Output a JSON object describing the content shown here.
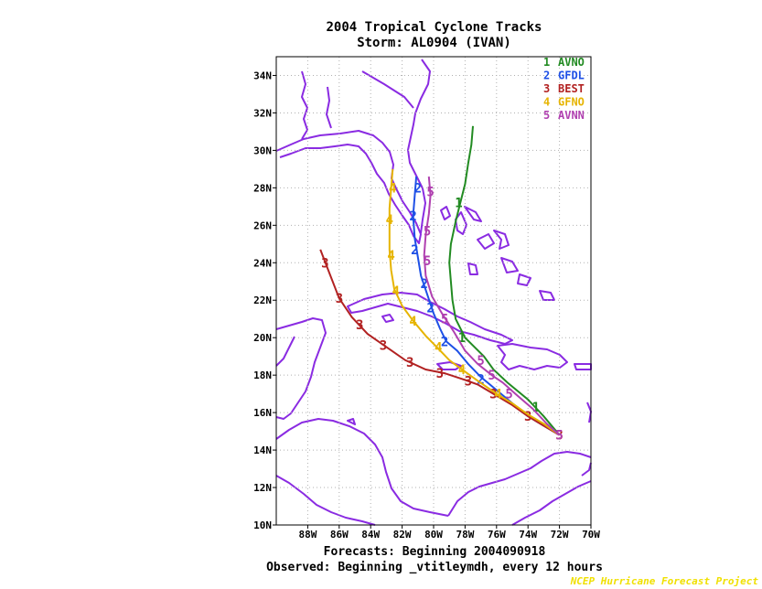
{
  "chart_data": {
    "type": "line",
    "title": "2004 Tropical Cyclone Tracks",
    "subtitle": "Storm: AL0904 (IVAN)",
    "footer1": "Forecasts: Beginning 2004090918",
    "footer2": "Observed: Beginning _vtitleymdh, every 12 hours",
    "credit": "NCEP Hurricane Forecast Project",
    "x_ticks": [
      -88,
      -86,
      -84,
      -82,
      -80,
      -78,
      -76,
      -74,
      -72,
      -70
    ],
    "x_tick_labels": [
      "88W",
      "86W",
      "84W",
      "82W",
      "80W",
      "78W",
      "76W",
      "74W",
      "72W",
      "70W"
    ],
    "y_ticks": [
      10,
      12,
      14,
      16,
      18,
      20,
      22,
      24,
      26,
      28,
      30,
      32,
      34
    ],
    "y_tick_labels": [
      "10N",
      "12N",
      "14N",
      "16N",
      "18N",
      "20N",
      "22N",
      "24N",
      "26N",
      "28N",
      "30N",
      "32N",
      "34N"
    ],
    "xlim": [
      -90,
      -70
    ],
    "ylim": [
      10,
      35
    ],
    "grid": true,
    "legend_position": "top-right",
    "coastline_color": "#8a2be2",
    "series": [
      {
        "id": "1",
        "name": "AVNO",
        "color": "#228b22",
        "marker": "1",
        "points": [
          [
            -72.0,
            14.8
          ],
          [
            -73.0,
            15.8
          ],
          [
            -74.0,
            16.7
          ],
          [
            -75.3,
            17.6
          ],
          [
            -76.2,
            18.3
          ],
          [
            -76.8,
            19.0
          ],
          [
            -77.4,
            19.5
          ],
          [
            -78.0,
            20.0
          ],
          [
            -78.6,
            21.0
          ],
          [
            -78.8,
            22.0
          ],
          [
            -78.9,
            23.0
          ],
          [
            -79.0,
            24.0
          ],
          [
            -78.9,
            25.0
          ],
          [
            -78.6,
            26.2
          ],
          [
            -78.3,
            27.2
          ],
          [
            -78.0,
            28.2
          ],
          [
            -77.8,
            29.3
          ],
          [
            -77.6,
            30.3
          ],
          [
            -77.5,
            31.3
          ]
        ],
        "markers": [
          [
            -73.5,
            16.3
          ],
          [
            -78.2,
            20.0
          ],
          [
            -78.4,
            27.2
          ]
        ]
      },
      {
        "id": "2",
        "name": "GFDL",
        "color": "#1e50e6",
        "marker": "2",
        "points": [
          [
            -72.0,
            14.8
          ],
          [
            -73.0,
            15.3
          ],
          [
            -74.0,
            15.8
          ],
          [
            -75.0,
            16.5
          ],
          [
            -76.0,
            17.2
          ],
          [
            -77.0,
            17.9
          ],
          [
            -77.8,
            18.6
          ],
          [
            -78.5,
            19.3
          ],
          [
            -79.2,
            19.8
          ],
          [
            -79.6,
            20.5
          ],
          [
            -80.0,
            21.3
          ],
          [
            -80.4,
            22.3
          ],
          [
            -80.8,
            23.3
          ],
          [
            -81.0,
            24.3
          ],
          [
            -81.2,
            25.3
          ],
          [
            -81.3,
            26.5
          ],
          [
            -81.2,
            27.6
          ],
          [
            -81.1,
            28.6
          ]
        ],
        "markers": [
          [
            -77.0,
            17.8
          ],
          [
            -79.3,
            19.8
          ],
          [
            -80.2,
            21.6
          ],
          [
            -80.6,
            22.9
          ],
          [
            -81.2,
            24.7
          ],
          [
            -81.3,
            26.5
          ],
          [
            -81.0,
            28.0
          ]
        ]
      },
      {
        "id": "3",
        "name": "BEST",
        "color": "#b22222",
        "marker": "3",
        "points": [
          [
            -72.0,
            14.8
          ],
          [
            -73.0,
            15.3
          ],
          [
            -74.0,
            15.8
          ],
          [
            -75.0,
            16.4
          ],
          [
            -76.2,
            17.0
          ],
          [
            -77.2,
            17.5
          ],
          [
            -78.2,
            17.8
          ],
          [
            -79.3,
            18.1
          ],
          [
            -80.5,
            18.3
          ],
          [
            -81.8,
            18.8
          ],
          [
            -83.0,
            19.5
          ],
          [
            -84.2,
            20.2
          ],
          [
            -85.2,
            21.1
          ],
          [
            -86.0,
            22.1
          ],
          [
            -86.6,
            23.4
          ],
          [
            -87.2,
            24.7
          ]
        ],
        "markers": [
          [
            -72.0,
            14.8
          ],
          [
            -74.0,
            15.8
          ],
          [
            -76.2,
            17.0
          ],
          [
            -77.8,
            17.7
          ],
          [
            -79.6,
            18.1
          ],
          [
            -81.5,
            18.7
          ],
          [
            -83.2,
            19.6
          ],
          [
            -84.7,
            20.7
          ],
          [
            -86.0,
            22.1
          ],
          [
            -86.9,
            24.0
          ]
        ]
      },
      {
        "id": "4",
        "name": "GFNO",
        "color": "#e6b400",
        "marker": "4",
        "points": [
          [
            -72.0,
            14.8
          ],
          [
            -73.0,
            15.4
          ],
          [
            -74.0,
            15.9
          ],
          [
            -75.0,
            16.5
          ],
          [
            -76.0,
            17.0
          ],
          [
            -77.2,
            17.7
          ],
          [
            -78.2,
            18.3
          ],
          [
            -79.0,
            18.8
          ],
          [
            -79.8,
            19.5
          ],
          [
            -80.5,
            20.1
          ],
          [
            -81.3,
            20.9
          ],
          [
            -82.0,
            21.7
          ],
          [
            -82.5,
            22.6
          ],
          [
            -82.7,
            23.6
          ],
          [
            -82.8,
            24.7
          ],
          [
            -82.8,
            25.8
          ],
          [
            -82.8,
            26.9
          ],
          [
            -82.7,
            28.0
          ],
          [
            -82.6,
            29.0
          ]
        ],
        "markers": [
          [
            -75.9,
            17.0
          ],
          [
            -78.2,
            18.3
          ],
          [
            -79.7,
            19.5
          ],
          [
            -81.3,
            20.9
          ],
          [
            -82.4,
            22.5
          ],
          [
            -82.7,
            24.4
          ],
          [
            -82.8,
            26.3
          ],
          [
            -82.6,
            28.0
          ]
        ]
      },
      {
        "id": "5",
        "name": "AVNN",
        "color": "#b040b0",
        "marker": "5",
        "points": [
          [
            -72.0,
            14.8
          ],
          [
            -72.8,
            15.4
          ],
          [
            -73.7,
            16.2
          ],
          [
            -74.8,
            17.0
          ],
          [
            -75.6,
            17.6
          ],
          [
            -76.3,
            18.0
          ],
          [
            -77.2,
            18.6
          ],
          [
            -78.0,
            19.3
          ],
          [
            -78.7,
            20.3
          ],
          [
            -79.4,
            21.2
          ],
          [
            -80.1,
            22.2
          ],
          [
            -80.5,
            23.3
          ],
          [
            -80.6,
            24.4
          ],
          [
            -80.5,
            25.5
          ],
          [
            -80.3,
            26.6
          ],
          [
            -80.2,
            27.6
          ],
          [
            -80.3,
            28.6
          ]
        ],
        "markers": [
          [
            -72.0,
            14.8
          ],
          [
            -75.2,
            17.0
          ],
          [
            -76.3,
            18.0
          ],
          [
            -77.0,
            18.8
          ],
          [
            -79.3,
            21.0
          ],
          [
            -80.4,
            24.1
          ],
          [
            -80.4,
            25.7
          ],
          [
            -80.2,
            27.8
          ]
        ]
      }
    ]
  }
}
